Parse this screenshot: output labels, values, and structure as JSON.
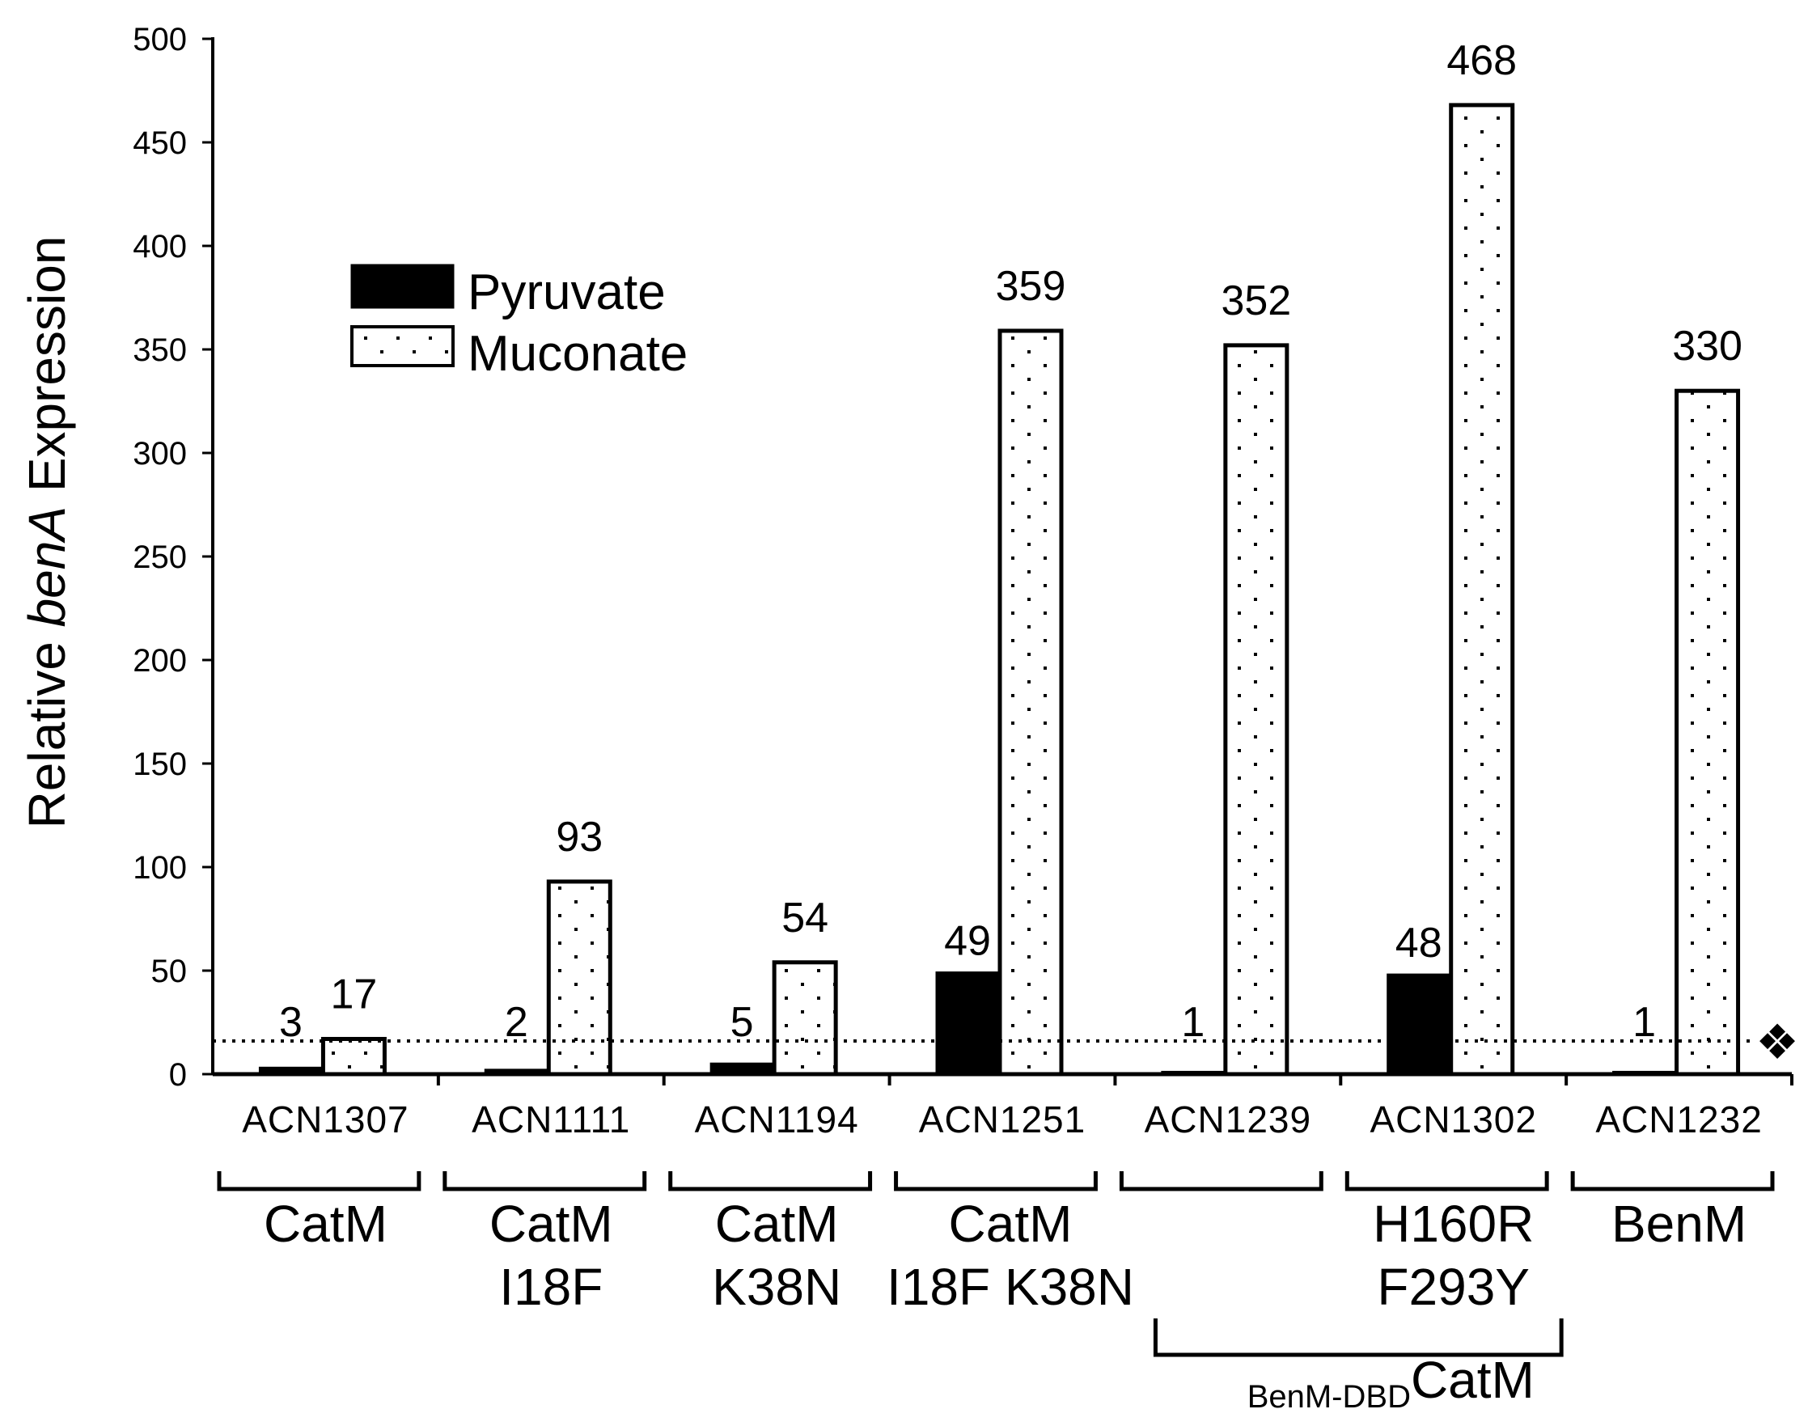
{
  "chart_data": {
    "type": "bar",
    "ylabel_prefix": "Relative ",
    "ylabel_italic": "benA",
    "ylabel_suffix": " Expression",
    "ylim": [
      0,
      500
    ],
    "yticks": [
      "0",
      "50",
      "100",
      "150",
      "200",
      "250",
      "300",
      "350",
      "400",
      "450",
      "500"
    ],
    "categories": [
      "ACN1307",
      "ACN1111",
      "ACN1194",
      "ACN1251",
      "ACN1239",
      "ACN1302",
      "ACN1232"
    ],
    "series": [
      {
        "name": "Pyruvate",
        "fill": "#000000",
        "values": [
          3,
          2,
          5,
          49,
          1,
          48,
          1
        ]
      },
      {
        "name": "Muconate",
        "fill": "dotted",
        "values": [
          17,
          93,
          54,
          359,
          352,
          468,
          330
        ]
      }
    ],
    "data_labels": {
      "pyruvate": [
        "3",
        "2",
        "5",
        "49",
        "1",
        "48",
        "1"
      ],
      "muconate": [
        "17",
        "93",
        "54",
        "359",
        "352",
        "468",
        "330"
      ]
    },
    "threshold_value": 16,
    "threshold_marker": "❖",
    "group_labels": [
      {
        "lines": [
          "CatM"
        ]
      },
      {
        "lines": [
          "CatM",
          "I18F"
        ]
      },
      {
        "lines": [
          "CatM",
          "K38N"
        ]
      },
      {
        "lines": [
          "CatM",
          "I18F K38N"
        ]
      },
      {
        "lines": []
      },
      {
        "lines": [
          "H160R",
          "F293Y"
        ]
      },
      {
        "lines": [
          "BenM"
        ]
      }
    ],
    "super_group_prefix": "BenM-DBD",
    "super_group_main": "CatM",
    "legend_position": "upper-left",
    "grid": false
  }
}
